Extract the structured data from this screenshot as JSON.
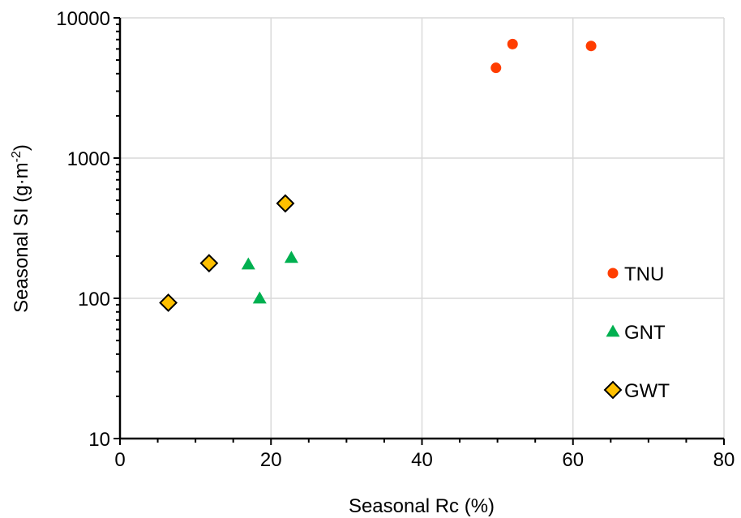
{
  "chart_data": {
    "type": "scatter",
    "xlabel": "Seasonal Rc (%)",
    "ylabel": "Seasonal SI (g·m",
    "ylabel_superscript": "-2",
    "ylabel_suffix": ")",
    "xlim": [
      0,
      80
    ],
    "ylim": [
      10,
      10000
    ],
    "y_scale": "log",
    "x_ticks": [
      "0",
      "20",
      "40",
      "60",
      "80"
    ],
    "y_ticks": [
      "10",
      "100",
      "1000",
      "10000"
    ],
    "grid": true,
    "legend_position": "right",
    "series": [
      {
        "name": "TNU",
        "marker": "circle",
        "color": "#FF3D00",
        "points": [
          [
            49.8,
            4400
          ],
          [
            52.0,
            6500
          ],
          [
            62.4,
            6300
          ]
        ]
      },
      {
        "name": "GNT",
        "marker": "triangle",
        "color": "#00B050",
        "points": [
          [
            17.0,
            175
          ],
          [
            18.5,
            100
          ],
          [
            22.7,
            195
          ]
        ]
      },
      {
        "name": "GWT",
        "marker": "diamond",
        "color": "#FFC000",
        "stroke": "#000000",
        "points": [
          [
            6.4,
            93
          ],
          [
            11.8,
            178
          ],
          [
            21.9,
            475
          ]
        ]
      }
    ]
  }
}
